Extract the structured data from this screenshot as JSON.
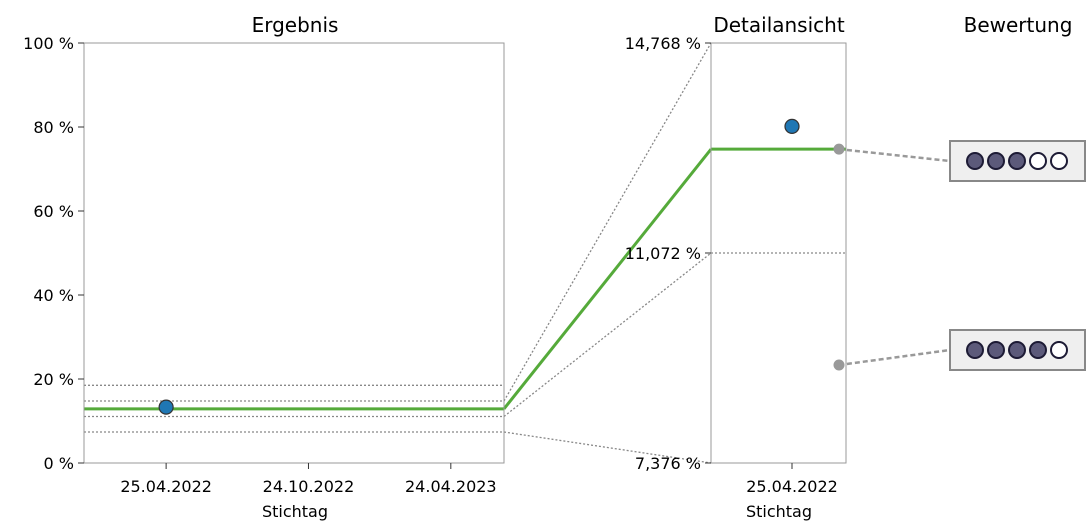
{
  "chart_data": [
    {
      "type": "line",
      "title": "Ergebnis",
      "xlabel": "Stichtag",
      "ylabel": "",
      "ylim": [
        0,
        100
      ],
      "yticks": [
        "0 %",
        "20 %",
        "40 %",
        "60 %",
        "80 %",
        "100 %"
      ],
      "ytick_values": [
        0,
        20,
        40,
        60,
        80,
        100
      ],
      "x_categories": [
        "25.04.2022",
        "24.10.2022",
        "24.04.2023"
      ],
      "series": [
        {
          "x": [
            "2022-01-10",
            "2023-07-01"
          ],
          "y": [
            12.9,
            12.9
          ],
          "color": "#55aa3a"
        }
      ],
      "points": [
        {
          "x": "2022-04-25",
          "y": 13.3,
          "color": "#1f77b4"
        }
      ],
      "reference_lines": [
        7.376,
        11.072,
        14.768,
        18.5
      ],
      "grid": false
    },
    {
      "type": "line",
      "title": "Detailansicht",
      "xlabel": "Stichtag",
      "ylabel": "",
      "ylim": [
        7.376,
        14.768
      ],
      "yticks": [
        "7,376 %",
        "11,072 %",
        "14,768 %"
      ],
      "ytick_values": [
        7.376,
        11.072,
        14.768
      ],
      "x_categories": [
        "25.04.2022"
      ],
      "series": [
        {
          "x": [
            "2022-04-10",
            "2022-05-05"
          ],
          "y": [
            12.9,
            12.9
          ],
          "color": "#55aa3a"
        }
      ],
      "points": [
        {
          "x": "2022-04-25",
          "y": 13.3,
          "color": "#1f77b4"
        }
      ],
      "reference_lines": [
        11.072
      ],
      "grid": false
    }
  ],
  "bewertung": {
    "title": "Bewertung",
    "ratings": [
      {
        "level": 12.9,
        "filled": 3,
        "total": 5
      },
      {
        "level": 9.1,
        "filled": 4,
        "total": 5
      }
    ],
    "filled_color": "#5c5a7a",
    "empty_color": "#ffffff",
    "marker_color": "#999999"
  }
}
